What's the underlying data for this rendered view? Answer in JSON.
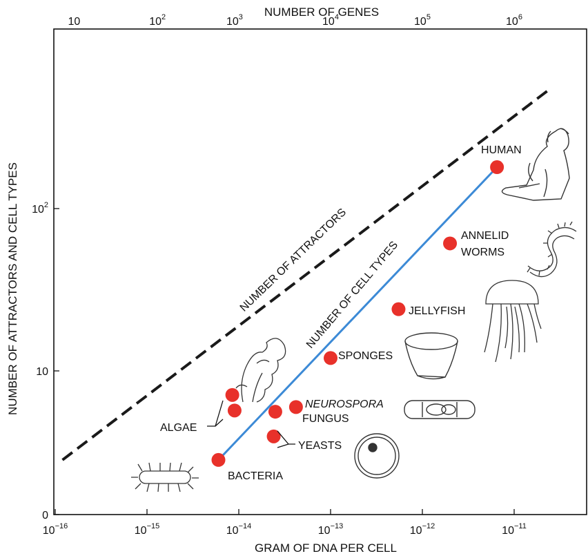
{
  "chart_data": {
    "type": "scatter",
    "x_axis": {
      "title": "GRAM OF DNA PER CELL",
      "scale": "log",
      "range": [
        1e-16,
        3e-11
      ],
      "ticks": [
        {
          "value": 1e-16,
          "base": "10",
          "exp": "−16"
        },
        {
          "value": 1e-15,
          "base": "10",
          "exp": "−15"
        },
        {
          "value": 1e-14,
          "base": "10",
          "exp": "−14"
        },
        {
          "value": 1e-13,
          "base": "10",
          "exp": "−13"
        },
        {
          "value": 1e-12,
          "base": "10",
          "exp": "−12"
        },
        {
          "value": 1e-11,
          "base": "10",
          "exp": "−11"
        }
      ]
    },
    "x2_axis": {
      "title": "NUMBER OF GENES",
      "ticks": [
        {
          "value": 10,
          "at_dna": 1.4e-16,
          "base": "10",
          "exp": ""
        },
        {
          "value": 100,
          "at_dna": 1.3e-15,
          "base": "10",
          "exp": "2"
        },
        {
          "value": 1000,
          "at_dna": 9e-15,
          "base": "10",
          "exp": "3"
        },
        {
          "value": 10000,
          "at_dna": 1e-13,
          "base": "10",
          "exp": "4"
        },
        {
          "value": 100000,
          "at_dna": 1e-12,
          "base": "10",
          "exp": "5"
        },
        {
          "value": 1000000,
          "at_dna": 1e-11,
          "base": "10",
          "exp": "6"
        }
      ]
    },
    "y_axis": {
      "title": "NUMBER OF ATTRACTORS AND CELL TYPES",
      "scale": "log",
      "range": [
        1,
        700
      ],
      "ticks": [
        {
          "value": 1,
          "base": "0",
          "exp": ""
        },
        {
          "value": 10,
          "base": "10",
          "exp": ""
        },
        {
          "value": 100,
          "base": "10",
          "exp": "2"
        }
      ]
    },
    "series": [
      {
        "kind": "points",
        "color": "#e8312a",
        "points": [
          {
            "x": 6e-15,
            "y": 2.4,
            "label": "BACTERIA"
          },
          {
            "x": 2.4e-14,
            "y": 3.5
          },
          {
            "x": 2.5e-14,
            "y": 5.2
          },
          {
            "x": 4.2e-14,
            "y": 5.6
          },
          {
            "x": 9e-15,
            "y": 5.3
          },
          {
            "x": 8.5e-15,
            "y": 6.8
          },
          {
            "x": 1e-13,
            "y": 12,
            "label": "SPONGES"
          },
          {
            "x": 5.5e-13,
            "y": 24,
            "label": "JELLYFISH"
          },
          {
            "x": 2e-12,
            "y": 61
          },
          {
            "x": 6.5e-12,
            "y": 180,
            "label": "HUMAN"
          }
        ]
      },
      {
        "kind": "line",
        "name": "NUMBER OF CELL TYPES",
        "color": "#3c8ad6",
        "style": "solid",
        "x": [
          6e-15,
          6.5e-12
        ],
        "y": [
          2.4,
          180
        ]
      },
      {
        "kind": "line",
        "name": "NUMBER OF ATTRACTORS",
        "color": "#1a1a1a",
        "style": "dashed",
        "x": [
          1.2e-16,
          2.5e-11
        ],
        "y": [
          2.4,
          550
        ]
      }
    ],
    "annotations": {
      "annelid": [
        "ANNELID",
        "WORMS"
      ],
      "neurospora": "NEUROSPORA",
      "fungus": "FUNGUS",
      "yeasts": "YEASTS",
      "algae": "ALGAE"
    },
    "grid": false,
    "legend": "none"
  }
}
